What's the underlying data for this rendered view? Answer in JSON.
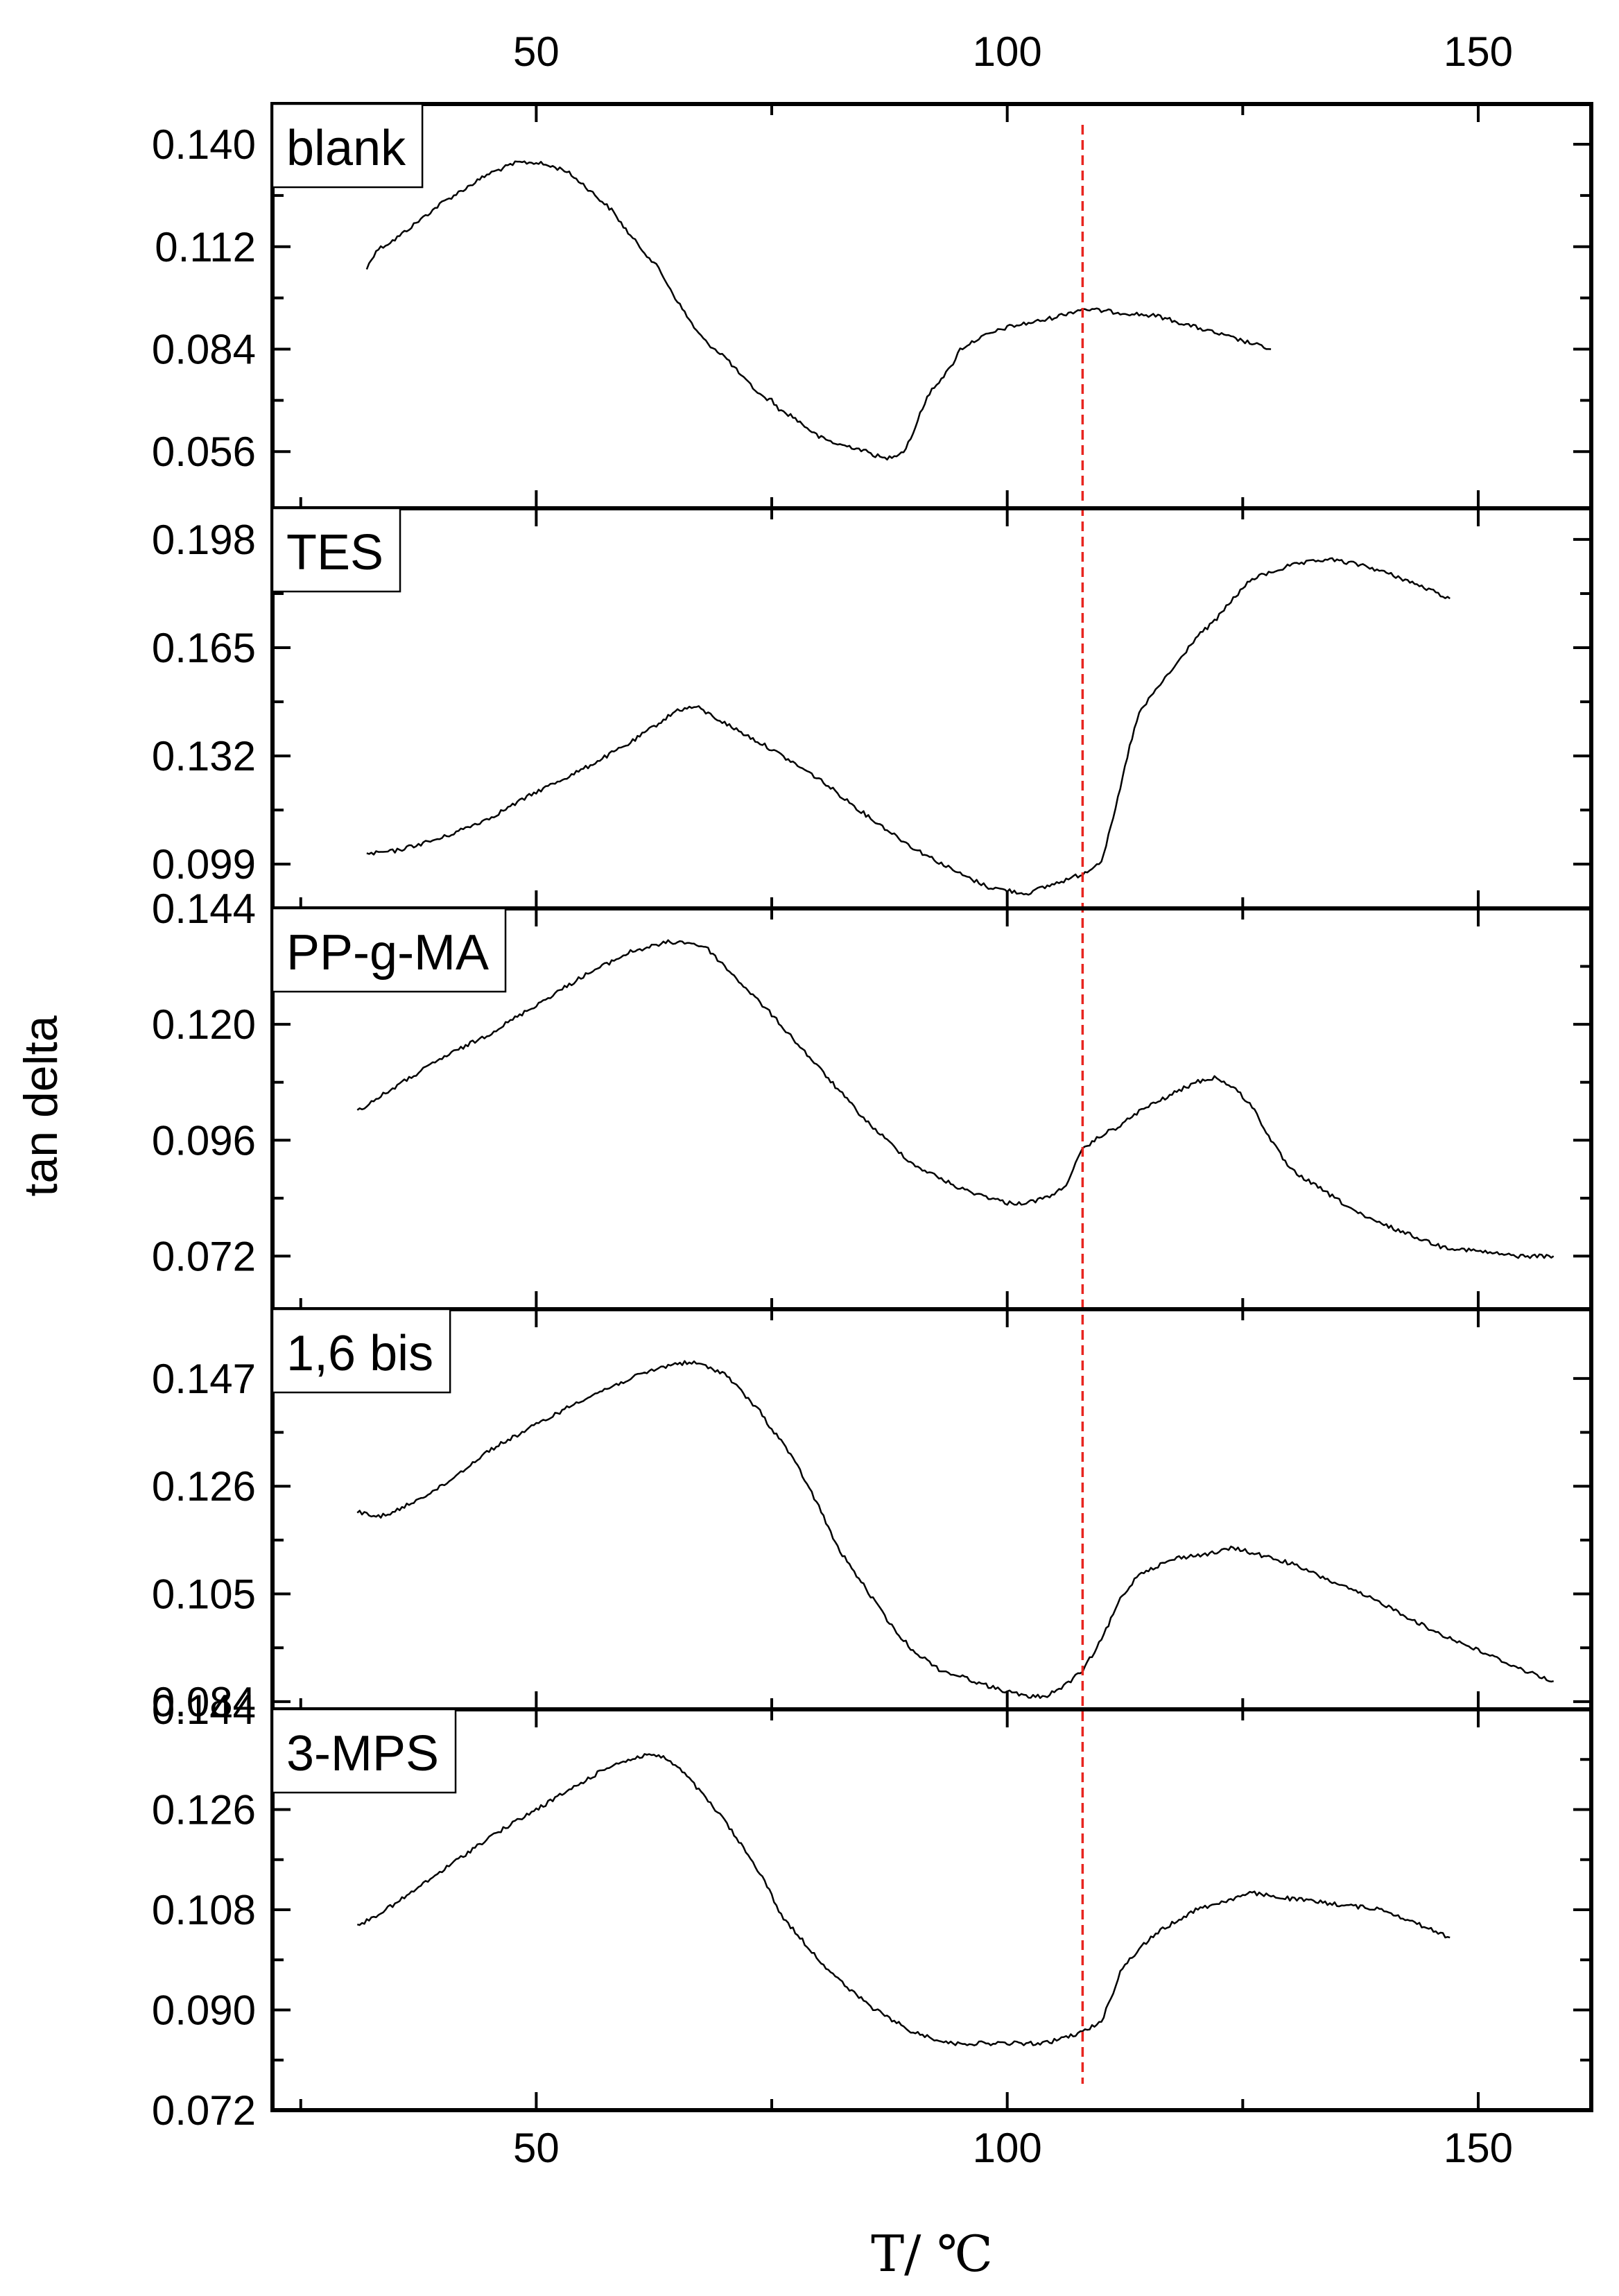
{
  "chart_data": {
    "type": "line",
    "xlabel": "T/ ℃",
    "ylabel": "tan delta",
    "xlim": [
      22,
      162
    ],
    "x_ticks": [
      50,
      100,
      150
    ],
    "x_tick_labels": [
      "50",
      "100",
      "150"
    ],
    "x_minor_ticks": [
      25,
      75,
      125
    ],
    "reference_line": {
      "x": 108,
      "color": "#e8251f",
      "style": "dashed"
    },
    "panels": [
      {
        "label": "blank",
        "ylim": [
          0.0405,
          0.151
        ],
        "y_ticks": [
          0.14,
          0.112,
          0.084,
          0.056
        ],
        "y_tick_labels": [
          "0.140",
          "0.112",
          "0.084",
          "0.056"
        ],
        "series": {
          "x": [
            32,
            33,
            35,
            40,
            45,
            48,
            50,
            53,
            55,
            58,
            60,
            63,
            65,
            67,
            68,
            70,
            72,
            74,
            75,
            76,
            77,
            78,
            80,
            82,
            84,
            85,
            86,
            87,
            88,
            89,
            90,
            91,
            92,
            94,
            95,
            97,
            100,
            104,
            108,
            112,
            116,
            120,
            124,
            128
          ],
          "y": [
            0.106,
            0.111,
            0.114,
            0.124,
            0.132,
            0.135,
            0.135,
            0.133,
            0.129,
            0.122,
            0.115,
            0.106,
            0.097,
            0.089,
            0.086,
            0.082,
            0.076,
            0.071,
            0.07,
            0.067,
            0.066,
            0.064,
            0.06,
            0.058,
            0.057,
            0.056,
            0.055,
            0.054,
            0.055,
            0.056,
            0.061,
            0.068,
            0.073,
            0.079,
            0.084,
            0.087,
            0.09,
            0.092,
            0.095,
            0.094,
            0.093,
            0.09,
            0.087,
            0.084
          ]
        }
      },
      {
        "label": "TES",
        "ylim": [
          0.0855,
          0.2075
        ],
        "y_ticks": [
          0.198,
          0.165,
          0.132,
          0.099
        ],
        "y_tick_labels": [
          "0.198",
          "0.165",
          "0.132",
          "0.099"
        ],
        "series": {
          "x": [
            32,
            35,
            40,
            45,
            50,
            55,
            60,
            63,
            65,
            67,
            70,
            75,
            80,
            85,
            90,
            95,
            98,
            100,
            102,
            104,
            106,
            108,
            110,
            111,
            112,
            113,
            114,
            116,
            118,
            120,
            122,
            124,
            126,
            130,
            134,
            138,
            142,
            147
          ],
          "y": [
            0.102,
            0.103,
            0.107,
            0.113,
            0.121,
            0.128,
            0.136,
            0.142,
            0.146,
            0.147,
            0.142,
            0.134,
            0.125,
            0.114,
            0.104,
            0.096,
            0.092,
            0.091,
            0.09,
            0.092,
            0.094,
            0.096,
            0.1,
            0.11,
            0.122,
            0.135,
            0.145,
            0.153,
            0.16,
            0.168,
            0.173,
            0.18,
            0.186,
            0.19,
            0.192,
            0.19,
            0.186,
            0.18
          ]
        }
      },
      {
        "label": "PP-g-MA",
        "ylim": [
          0.061,
          0.144
        ],
        "y_ticks": [
          0.144,
          0.12,
          0.096,
          0.072
        ],
        "y_tick_labels": [
          "0.144",
          "0.120",
          "0.096",
          "0.072"
        ],
        "series": {
          "x": [
            31,
            35,
            40,
            45,
            50,
            55,
            60,
            64,
            66,
            68,
            70,
            75,
            80,
            85,
            90,
            95,
            100,
            102,
            104,
            106,
            108,
            110,
            112,
            114,
            116,
            118,
            120,
            122,
            124,
            126,
            128,
            130,
            134,
            138,
            142,
            146,
            150,
            154,
            158
          ],
          "y": [
            0.102,
            0.107,
            0.113,
            0.118,
            0.124,
            0.13,
            0.135,
            0.137,
            0.137,
            0.136,
            0.132,
            0.122,
            0.111,
            0.1,
            0.091,
            0.086,
            0.083,
            0.083,
            0.084,
            0.086,
            0.094,
            0.097,
            0.099,
            0.102,
            0.104,
            0.106,
            0.108,
            0.109,
            0.107,
            0.103,
            0.096,
            0.09,
            0.085,
            0.08,
            0.077,
            0.074,
            0.073,
            0.072,
            0.072
          ]
        }
      },
      {
        "label": "1,6 bis",
        "ylim": [
          0.0825,
          0.1605
        ],
        "y_ticks": [
          0.147,
          0.126,
          0.105,
          0.084
        ],
        "y_tick_labels": [
          "0.147",
          "0.126",
          "0.105",
          "0.084"
        ],
        "series": {
          "x": [
            31,
            33,
            35,
            40,
            45,
            50,
            55,
            60,
            63,
            65,
            67,
            70,
            72,
            74,
            75,
            76,
            78,
            80,
            82,
            85,
            88,
            90,
            93,
            95,
            98,
            100,
            102,
            104,
            106,
            108,
            110,
            112,
            114,
            118,
            122,
            124,
            126,
            130,
            135,
            140,
            145,
            150,
            155,
            158
          ],
          "y": [
            0.121,
            0.12,
            0.121,
            0.126,
            0.133,
            0.138,
            0.143,
            0.147,
            0.149,
            0.15,
            0.15,
            0.148,
            0.144,
            0.14,
            0.137,
            0.135,
            0.129,
            0.122,
            0.114,
            0.106,
            0.098,
            0.094,
            0.09,
            0.089,
            0.087,
            0.086,
            0.085,
            0.085,
            0.087,
            0.09,
            0.096,
            0.104,
            0.109,
            0.112,
            0.113,
            0.114,
            0.113,
            0.111,
            0.107,
            0.103,
            0.098,
            0.094,
            0.09,
            0.088
          ]
        }
      },
      {
        "label": "3-MPS",
        "ylim": [
          0.072,
          0.144
        ],
        "y_ticks": [
          0.144,
          0.126,
          0.108,
          0.09,
          0.072
        ],
        "y_tick_labels": [
          "0.144",
          "0.126",
          "0.108",
          "0.090",
          "0.072"
        ],
        "series": {
          "x": [
            31,
            35,
            40,
            45,
            50,
            55,
            58,
            60,
            62,
            64,
            66,
            70,
            74,
            76,
            78,
            80,
            83,
            86,
            90,
            94,
            98,
            100,
            104,
            106,
            108,
            110,
            111,
            112,
            114,
            116,
            118,
            120,
            122,
            124,
            126,
            130,
            135,
            140,
            147
          ],
          "y": [
            0.105,
            0.109,
            0.115,
            0.121,
            0.126,
            0.131,
            0.134,
            0.135,
            0.136,
            0.135,
            0.132,
            0.124,
            0.114,
            0.107,
            0.103,
            0.099,
            0.094,
            0.09,
            0.086,
            0.084,
            0.084,
            0.084,
            0.084,
            0.085,
            0.086,
            0.088,
            0.092,
            0.097,
            0.101,
            0.104,
            0.106,
            0.108,
            0.109,
            0.11,
            0.111,
            0.11,
            0.109,
            0.108,
            0.103
          ]
        }
      }
    ]
  }
}
